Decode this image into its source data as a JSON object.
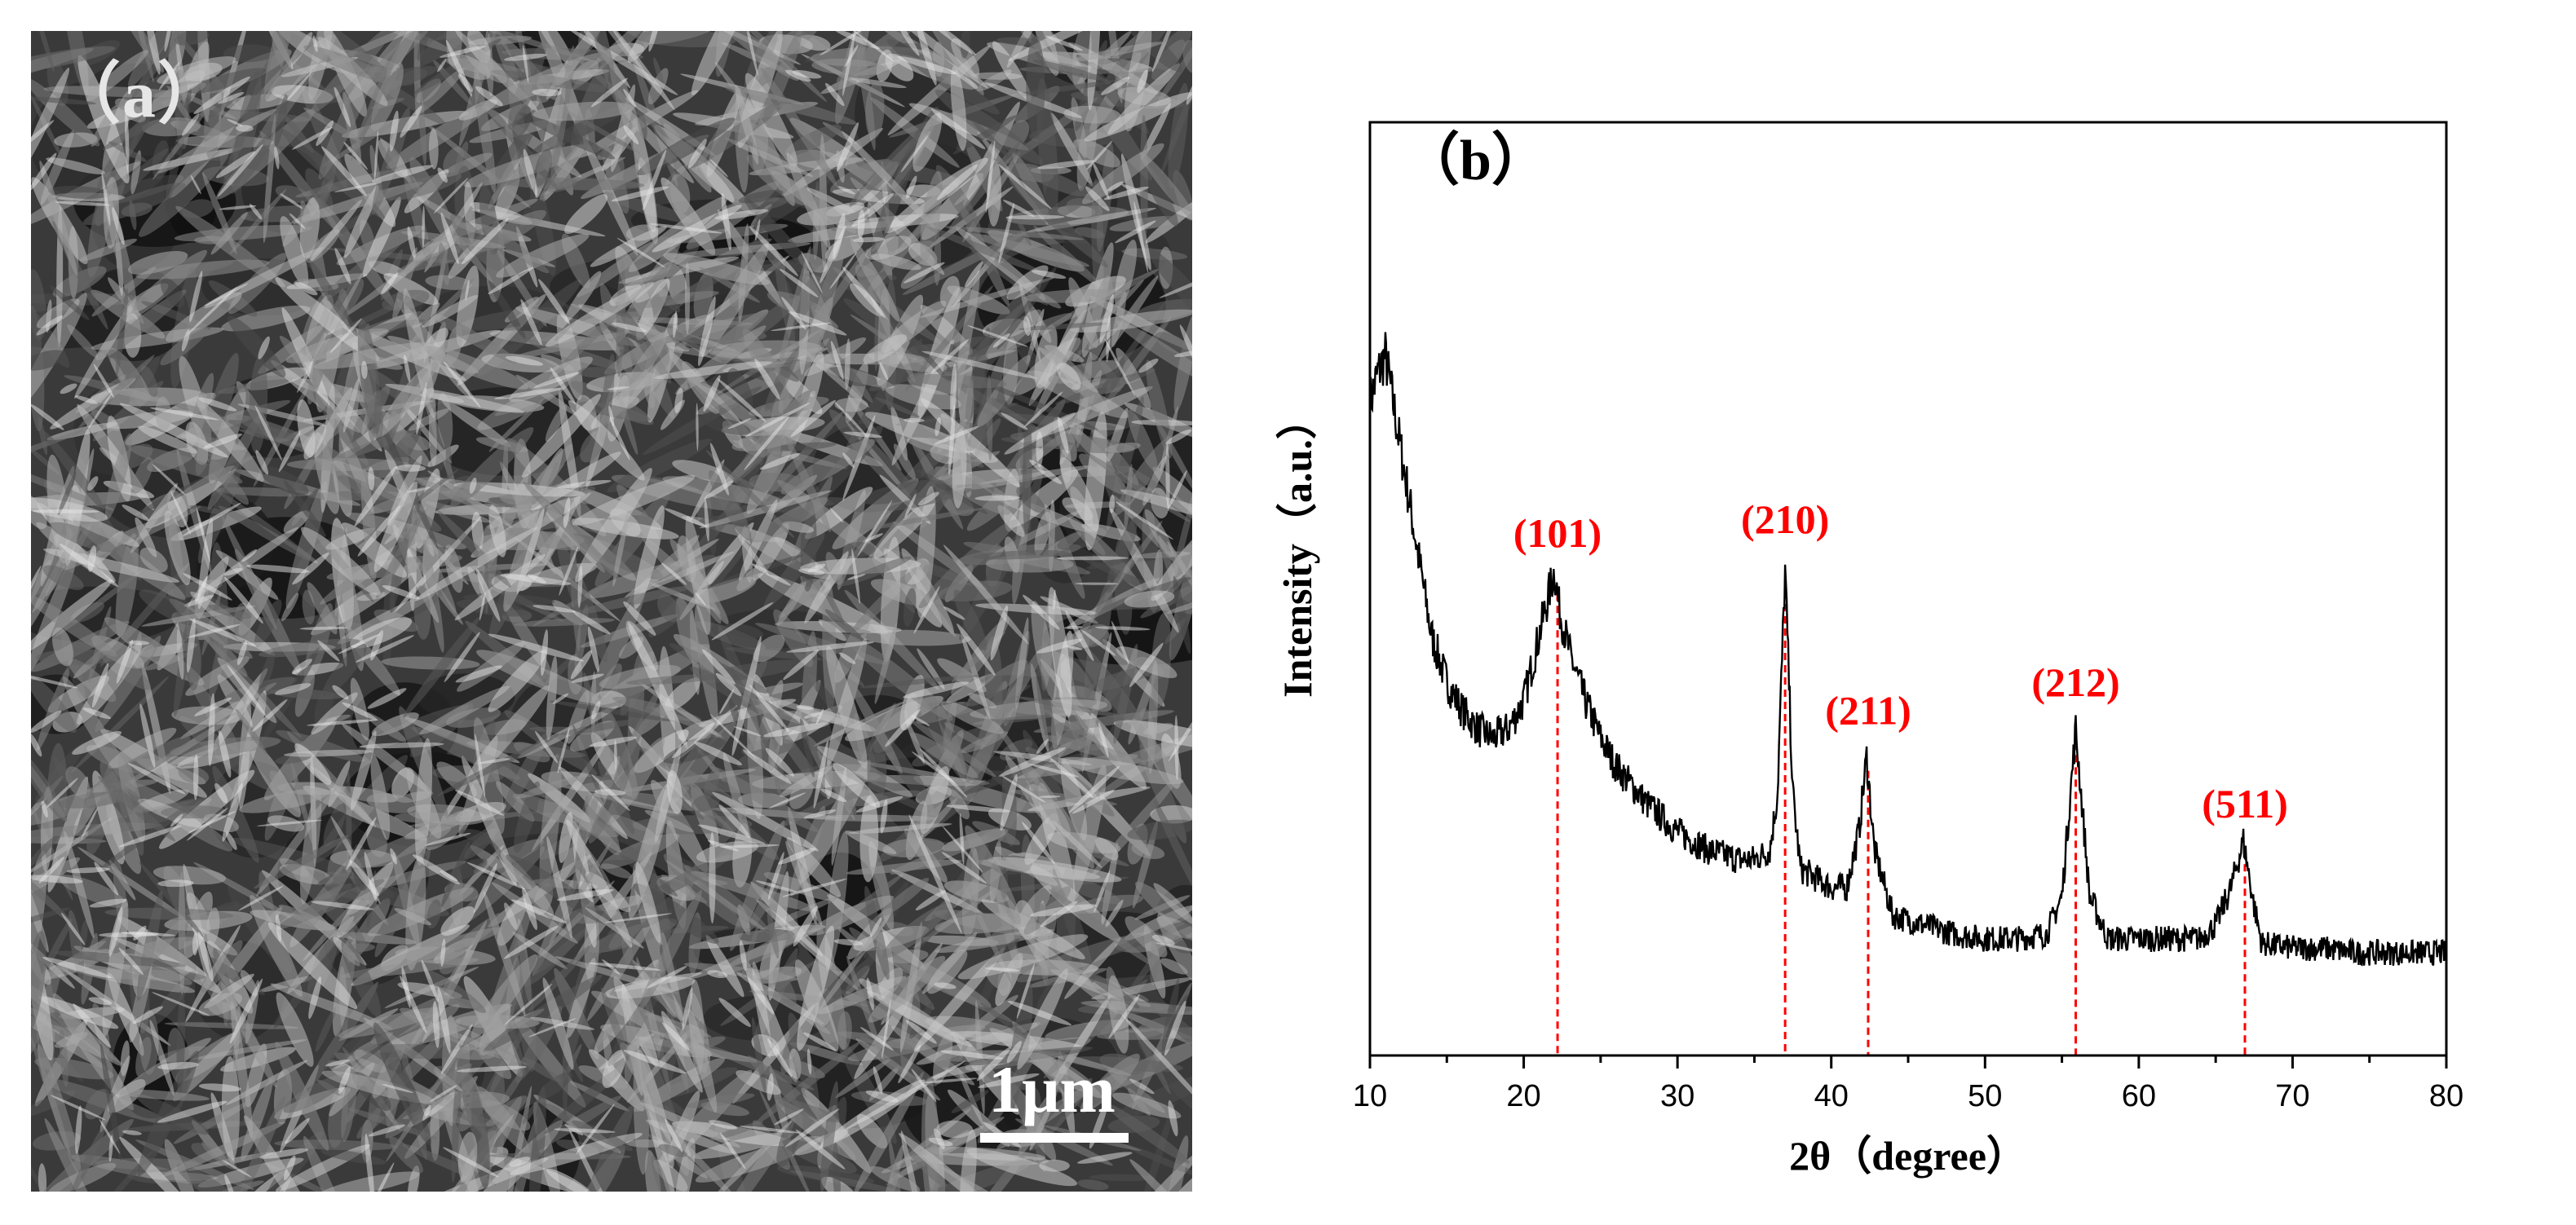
{
  "panels": {
    "sem": {
      "label": "（a）",
      "scale_bar": "1μm"
    },
    "xrd": {
      "label": "（b）"
    }
  },
  "colors": {
    "trace": "#000000",
    "peak_marker": "#ff0000",
    "peak_label": "#ff0000"
  },
  "chart_data": {
    "type": "line",
    "title": "",
    "xlabel": "2θ（degree）",
    "ylabel": "Intensity（a.u.）",
    "xlim": [
      10,
      80
    ],
    "ylim": [
      0,
      100
    ],
    "x_ticks": [
      10,
      20,
      30,
      40,
      50,
      60,
      70,
      80
    ],
    "y_ticks": [],
    "grid": false,
    "legend": "none",
    "series": [
      {
        "x": [
          10,
          10.5,
          11,
          12,
          13,
          14,
          15,
          16,
          17,
          18,
          19,
          20,
          21,
          22,
          22.3,
          23,
          24,
          25,
          26,
          28,
          30,
          32,
          34,
          35,
          36,
          36.5,
          37,
          37.5,
          38,
          39,
          40,
          41,
          41.8,
          42.3,
          42.8,
          44,
          46,
          48,
          50,
          52,
          54,
          55,
          55.9,
          56.8,
          58,
          60,
          62,
          64,
          65,
          66,
          66.8,
          67.5,
          68,
          70,
          72,
          74,
          76,
          78,
          80
        ],
        "y": [
          70,
          73,
          75,
          65,
          55,
          45,
          40,
          37,
          35,
          34,
          35,
          38,
          45,
          52,
          48,
          43,
          38,
          34,
          31,
          27,
          24,
          22,
          21,
          21,
          22,
          28,
          52,
          28,
          20,
          19,
          18,
          18,
          24,
          32,
          22,
          15,
          14,
          13,
          12.5,
          12.5,
          13,
          17,
          35,
          17,
          12.5,
          12.5,
          12.5,
          12.5,
          14,
          18,
          23,
          16,
          12,
          11.5,
          11.5,
          11,
          11,
          11,
          11
        ]
      }
    ],
    "annotations": [
      {
        "text": "(101)",
        "x": 22.2,
        "y": 54.5
      },
      {
        "text": "(210)",
        "x": 37.0,
        "y": 56
      },
      {
        "text": "(211)",
        "x": 42.4,
        "y": 35.5
      },
      {
        "text": "(212)",
        "x": 55.9,
        "y": 38.5
      },
      {
        "text": "(511)",
        "x": 66.9,
        "y": 25.5
      }
    ],
    "peak_markers_x": [
      22.2,
      37.0,
      42.4,
      55.9,
      66.9
    ]
  }
}
